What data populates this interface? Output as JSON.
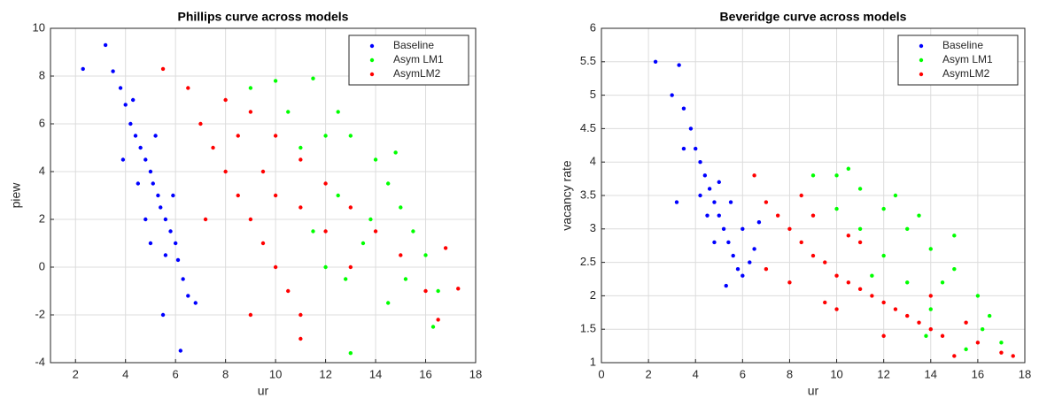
{
  "chart_data": [
    {
      "type": "scatter",
      "title": "Phillips curve across models",
      "x_label": "ur",
      "y_label": "piew",
      "xlim": [
        1,
        18
      ],
      "ylim": [
        -4,
        10
      ],
      "xticks": [
        2,
        4,
        6,
        8,
        10,
        12,
        14,
        16,
        18
      ],
      "yticks": [
        -4,
        -2,
        0,
        2,
        4,
        6,
        8,
        10
      ],
      "grid": true,
      "legend": "northeast",
      "series": [
        {
          "name": "Baseline",
          "color": "#0000ff",
          "x": [
            3.2,
            3.5,
            3.8,
            4.0,
            4.2,
            4.4,
            4.6,
            4.8,
            5.0,
            5.1,
            5.3,
            5.4,
            5.6,
            5.8,
            6.0,
            6.1,
            6.3,
            6.5,
            5.5,
            6.2,
            4.5,
            4.8,
            5.2,
            3.9,
            5.9,
            4.3,
            5.6,
            2.3,
            6.8,
            5.0
          ],
          "values": [
            9.3,
            8.2,
            7.5,
            6.8,
            6.0,
            5.5,
            5.0,
            4.5,
            4.0,
            3.5,
            3.0,
            2.5,
            2.0,
            1.5,
            1.0,
            0.3,
            -0.5,
            -1.2,
            -2.0,
            -3.5,
            3.5,
            2.0,
            5.5,
            4.5,
            3.0,
            7.0,
            0.5,
            8.3,
            -1.5,
            1.0
          ]
        },
        {
          "name": "Asym LM1",
          "color": "#00ff00",
          "x": [
            9.0,
            10.0,
            11.5,
            12.5,
            13.0,
            14.0,
            14.5,
            15.0,
            15.5,
            16.0,
            16.5,
            16.3,
            13.0,
            14.5,
            12.0,
            13.5,
            12.5,
            11.0,
            12.0,
            13.8,
            15.2,
            10.5,
            14.8,
            11.5,
            12.8
          ],
          "values": [
            7.5,
            7.8,
            7.9,
            6.5,
            5.5,
            4.5,
            3.5,
            2.5,
            1.5,
            0.5,
            -1.0,
            -2.5,
            -3.6,
            -1.5,
            0.0,
            1.0,
            3.0,
            5.0,
            5.5,
            2.0,
            -0.5,
            6.5,
            4.8,
            1.5,
            -0.5
          ]
        },
        {
          "name": "AsymLM2",
          "color": "#ff0000",
          "x": [
            6.5,
            7.0,
            7.5,
            8.0,
            8.5,
            9.0,
            9.5,
            10.0,
            10.5,
            11.0,
            11.0,
            9.0,
            8.0,
            9.0,
            10.0,
            11.0,
            12.0,
            13.0,
            14.0,
            15.0,
            16.0,
            16.5,
            17.3,
            16.8,
            10.0,
            11.0,
            12.0,
            9.5,
            13.0,
            5.5,
            8.5,
            7.2
          ],
          "values": [
            7.5,
            6.0,
            5.0,
            4.0,
            3.0,
            2.0,
            1.0,
            0.0,
            -1.0,
            -2.0,
            -3.0,
            -2.0,
            7.0,
            6.5,
            5.5,
            4.5,
            3.5,
            2.5,
            1.5,
            0.5,
            -1.0,
            -2.2,
            -0.9,
            0.8,
            3.0,
            2.5,
            1.5,
            4.0,
            0.0,
            8.3,
            5.5,
            2.0
          ]
        }
      ]
    },
    {
      "type": "scatter",
      "title": "Beveridge curve across models",
      "x_label": "ur",
      "y_label": "vacancy rate",
      "xlim": [
        0,
        18
      ],
      "ylim": [
        1,
        6
      ],
      "xticks": [
        0,
        2,
        4,
        6,
        8,
        10,
        12,
        14,
        16,
        18
      ],
      "yticks": [
        1,
        1.5,
        2,
        2.5,
        3,
        3.5,
        4,
        4.5,
        5,
        5.5,
        6
      ],
      "grid": true,
      "legend": "northeast",
      "series": [
        {
          "name": "Baseline",
          "color": "#0000ff",
          "x": [
            2.3,
            3.3,
            3.0,
            3.5,
            3.8,
            4.0,
            4.2,
            4.4,
            4.6,
            4.8,
            5.0,
            5.2,
            5.4,
            5.6,
            5.8,
            6.0,
            6.3,
            6.5,
            5.3,
            4.5,
            5.0,
            3.5,
            6.0,
            4.2,
            5.5,
            3.2,
            4.8,
            6.7
          ],
          "values": [
            5.5,
            5.45,
            5.0,
            4.8,
            4.5,
            4.2,
            4.0,
            3.8,
            3.6,
            3.4,
            3.2,
            3.0,
            2.8,
            2.6,
            2.4,
            2.3,
            2.5,
            2.7,
            2.15,
            3.2,
            3.7,
            4.2,
            3.0,
            3.5,
            3.4,
            3.4,
            2.8,
            3.1
          ]
        },
        {
          "name": "Asym LM1",
          "color": "#00ff00",
          "x": [
            9.0,
            10.0,
            11.0,
            12.0,
            13.0,
            14.0,
            15.0,
            16.0,
            16.5,
            17.0,
            15.5,
            14.0,
            13.0,
            12.0,
            11.0,
            10.0,
            12.5,
            14.5,
            13.5,
            15.0,
            11.5,
            16.2,
            10.5,
            13.8
          ],
          "values": [
            3.8,
            3.8,
            3.6,
            3.3,
            3.0,
            2.7,
            2.4,
            2.0,
            1.7,
            1.3,
            1.2,
            1.8,
            2.2,
            2.6,
            3.0,
            3.3,
            3.5,
            2.2,
            3.2,
            2.9,
            2.3,
            1.5,
            3.9,
            1.4
          ]
        },
        {
          "name": "AsymLM2",
          "color": "#ff0000",
          "x": [
            6.5,
            7.0,
            7.5,
            8.0,
            8.5,
            9.0,
            9.5,
            10.0,
            10.5,
            11.0,
            11.5,
            12.0,
            12.5,
            13.0,
            13.5,
            14.0,
            14.5,
            15.0,
            16.0,
            17.0,
            17.5,
            8.0,
            9.0,
            10.0,
            11.0,
            12.0,
            7.0,
            9.5,
            8.5,
            14.0,
            15.5,
            10.5
          ],
          "values": [
            3.8,
            3.4,
            3.2,
            3.0,
            2.8,
            2.6,
            2.5,
            2.3,
            2.2,
            2.1,
            2.0,
            1.9,
            1.8,
            1.7,
            1.6,
            1.5,
            1.4,
            1.1,
            1.3,
            1.15,
            1.1,
            2.2,
            3.2,
            1.8,
            2.8,
            1.4,
            2.4,
            1.9,
            3.5,
            2.0,
            1.6,
            2.9
          ]
        }
      ]
    }
  ]
}
